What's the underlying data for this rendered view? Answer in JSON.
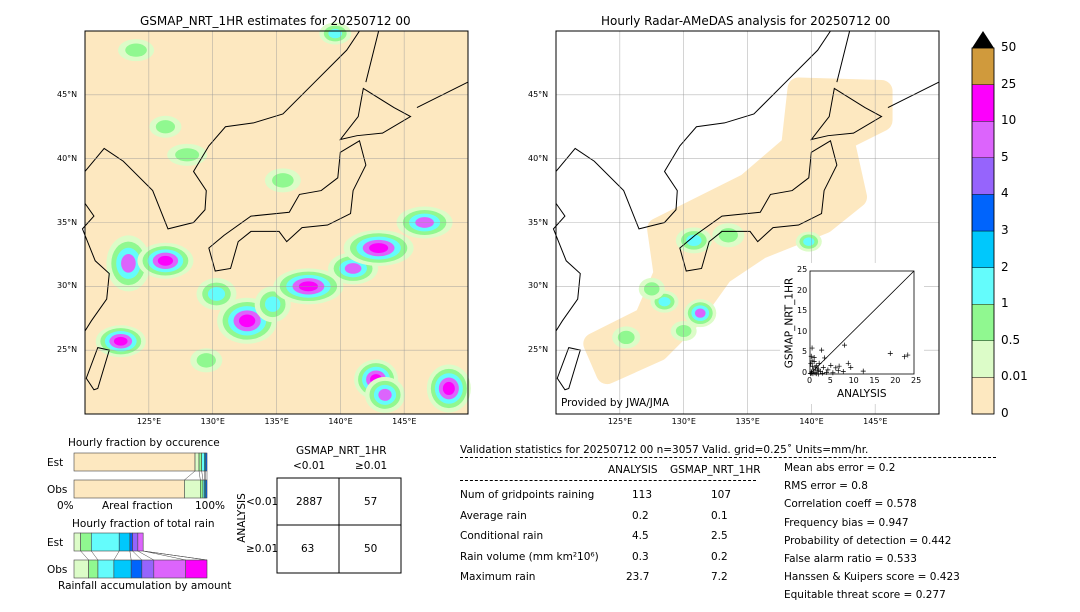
{
  "left_map": {
    "title": "GSMAP_NRT_1HR estimates for 20250712 00",
    "lon_ticks": [
      "125°E",
      "130°E",
      "135°E",
      "140°E",
      "145°E"
    ],
    "lat_ticks": [
      "45°N",
      "40°N",
      "35°N",
      "30°N",
      "25°N"
    ]
  },
  "right_map": {
    "title": "Hourly Radar-AMeDAS analysis for 20250712 00",
    "lon_ticks": [
      "125°E",
      "130°E",
      "135°E",
      "140°E",
      "145°E"
    ],
    "lat_ticks": [
      "45°N",
      "40°N",
      "35°N",
      "30°N",
      "25°N"
    ],
    "credit": "Provided by JWA/JMA"
  },
  "colorbar": {
    "levels": [
      "0",
      "0.01",
      "0.5",
      "1",
      "2",
      "3",
      "4",
      "5",
      "10",
      "25",
      "50"
    ],
    "colors": [
      "#fde8c0",
      "#dcfcc8",
      "#90f890",
      "#64fcfc",
      "#00c8fc",
      "#0064fc",
      "#9664fc",
      "#dc64fc",
      "#fc00fc",
      "#d09a3c"
    ]
  },
  "occurrence": {
    "title": "Hourly fraction by occurence",
    "est_label": "Est",
    "obs_label": "Obs",
    "xlabel": "Areal fraction",
    "x0": "0%",
    "x1": "100%",
    "est": [
      0.91,
      0.03,
      0.02,
      0.02,
      0.01,
      0.01
    ],
    "obs": [
      0.83,
      0.12,
      0.02,
      0.01,
      0.01,
      0.01
    ]
  },
  "total_rain": {
    "title": "Hourly fraction of total rain",
    "est_label": "Est",
    "obs_label": "Obs",
    "xlabel": "Rainfall accumulation by amount",
    "est": [
      0.05,
      0.08,
      0.21,
      0.08,
      0.02,
      0.04,
      0.04,
      0,
      0
    ],
    "obs": [
      0.11,
      0.07,
      0.12,
      0.13,
      0.08,
      0.09,
      0.24,
      0.16,
      0
    ]
  },
  "contingency": {
    "title": "GSMAP_NRT_1HR",
    "col1": "<0.01",
    "col2": "≥0.01",
    "ylabel": "ANALYSIS",
    "row1": "<0.01",
    "row2": "≥0.01",
    "a": "2887",
    "b": "57",
    "c": "63",
    "d": "50"
  },
  "stats": {
    "header": "Validation statistics for 20250712 00  n=3057 Valid. grid=0.25˚ Units=mm/hr.",
    "col_a": "ANALYSIS",
    "col_b": "GSMAP_NRT_1HR",
    "rows": [
      {
        "label": "Num of gridpoints raining",
        "a": "113",
        "b": "107"
      },
      {
        "label": "Average rain",
        "a": "0.2",
        "b": "0.1"
      },
      {
        "label": "Conditional rain",
        "a": "4.5",
        "b": "2.5"
      },
      {
        "label": "Rain volume (mm km²10⁶)",
        "a": "0.3",
        "b": "0.2"
      },
      {
        "label": "Maximum rain",
        "a": "23.7",
        "b": "7.2"
      }
    ],
    "scores": [
      "Mean abs error =    0.2",
      "RMS error =    0.8",
      "Correlation coeff =  0.578",
      "Frequency bias =  0.947",
      "Probability of detection =  0.442",
      "False alarm ratio =  0.533",
      "Hanssen & Kuipers score =  0.423",
      "Equitable threat score =  0.277"
    ]
  },
  "chart_data": {
    "type": "scatter",
    "xlabel": "ANALYSIS",
    "ylabel": "GSMAP_NRT_1HR",
    "xlim": [
      0,
      25
    ],
    "ylim": [
      0,
      25
    ],
    "ticks": [
      "0",
      "5",
      "10",
      "15",
      "20",
      "25"
    ],
    "points": [
      [
        0.5,
        6.3
      ],
      [
        2.8,
        5.8
      ],
      [
        8.3,
        7.0
      ],
      [
        19.3,
        5.0
      ],
      [
        22.7,
        4.2
      ],
      [
        23.5,
        4.6
      ],
      [
        12.8,
        0.7
      ],
      [
        9.2,
        2.6
      ],
      [
        9.8,
        1.6
      ],
      [
        7.0,
        1.9
      ],
      [
        6.2,
        1.5
      ],
      [
        5.0,
        2.1
      ],
      [
        4.3,
        1.0
      ],
      [
        3.5,
        3.9
      ],
      [
        1.0,
        4.0
      ],
      [
        0.3,
        4.3
      ],
      [
        1.5,
        2.0
      ],
      [
        2.0,
        1.2
      ],
      [
        0.8,
        1.0
      ],
      [
        0.4,
        0.5
      ],
      [
        1.2,
        0.3
      ],
      [
        2.5,
        0.6
      ],
      [
        3.0,
        0.2
      ],
      [
        0.2,
        2.5
      ],
      [
        0.6,
        1.8
      ],
      [
        1.8,
        0.9
      ],
      [
        4.0,
        0.4
      ],
      [
        5.5,
        0.3
      ],
      [
        6.8,
        0.8
      ],
      [
        8.0,
        0.6
      ],
      [
        3.2,
        1.6
      ],
      [
        2.2,
        2.6
      ],
      [
        1.0,
        3.0
      ],
      [
        0.1,
        0.1
      ],
      [
        0.3,
        0.2
      ],
      [
        0.7,
        0.1
      ],
      [
        1.5,
        0.1
      ],
      [
        2.0,
        0.0
      ],
      [
        0.5,
        3.2
      ],
      [
        1.3,
        1.5
      ]
    ]
  }
}
